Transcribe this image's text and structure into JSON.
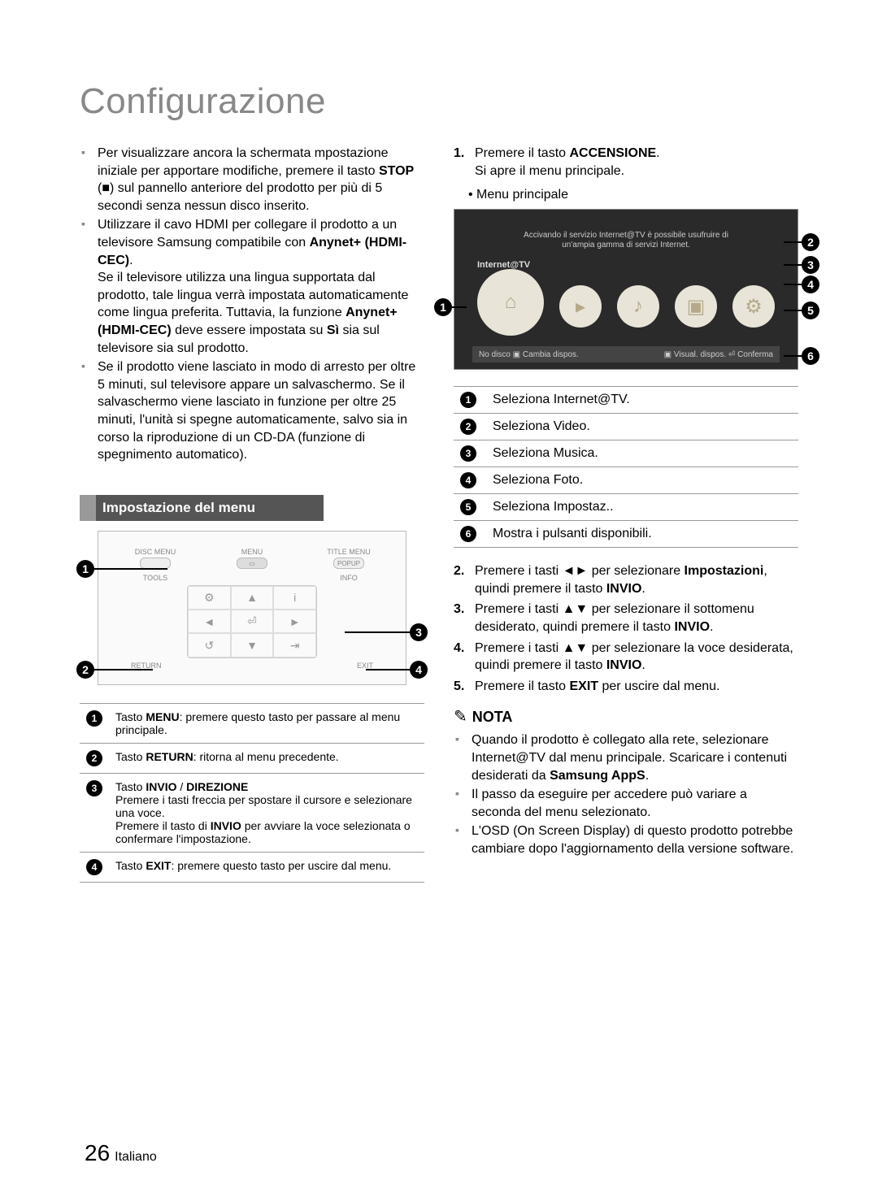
{
  "page": {
    "title": "Configurazione",
    "number": "26",
    "lang": "Italiano"
  },
  "left_bullets": [
    "Per visualizzare ancora la schermata mpostazione iniziale per apportare modifiche, premere il tasto <b>STOP</b> (■) sul pannello anteriore del prodotto per più di 5 secondi senza nessun disco inserito.",
    "Utilizzare il cavo HDMI per collegare il prodotto a un televisore Samsung compatibile con <b>Anynet+ (HDMI-CEC)</b>.<br>Se il televisore utilizza una lingua supportata dal prodotto, tale lingua verrà impostata automaticamente come lingua preferita. Tuttavia, la funzione <b>Anynet+ (HDMI-CEC)</b> deve essere impostata su <b>Sì</b> sia sul televisore sia sul prodotto.",
    "Se il prodotto viene lasciato in modo di arresto per oltre 5 minuti, sul televisore appare un salvaschermo. Se il salvaschermo viene lasciato in funzione per oltre 25 minuti, l'unità si spegne automaticamente, salvo sia in corso la riproduzione di un CD-DA (funzione di spegnimento automatico)."
  ],
  "section_band": "Impostazione del menu",
  "remote": {
    "top_labels": [
      "DISC MENU",
      "MENU",
      "TITLE MENU"
    ],
    "popup": "POPUP",
    "mid_labels": [
      "TOOLS",
      "INFO"
    ],
    "bottom_labels": [
      "RETURN",
      "EXIT"
    ]
  },
  "remote_table": [
    {
      "n": "1",
      "html": "Tasto <b>MENU</b>: premere questo tasto per passare al menu principale."
    },
    {
      "n": "2",
      "html": "Tasto <b>RETURN</b>: ritorna al menu precedente."
    },
    {
      "n": "3",
      "html": "Tasto <b>INVIO</b> / <b>DIREZIONE</b><br>Premere i tasti freccia per spostare il cursore e selezionare una voce.<br>Premere il tasto di <b>INVIO</b> per avviare la voce selezionata o confermare l'impostazione."
    },
    {
      "n": "4",
      "html": "Tasto <b>EXIT</b>: premere questo tasto per uscire dal menu."
    }
  ],
  "right": {
    "step1": "Premere il tasto <b>ACCENSIONE</b>.<br>Si apre il menu principale.",
    "menu_label": "• Menu principale",
    "tv_banner": "Accivando il servizio Internet@TV è possibile usufruire di un'ampia gamma di servizi Internet.",
    "tv_internet": "Internet@TV",
    "tv_bar_left": "No disco  ▣ Cambia dispos.",
    "tv_bar_right": "▣ Visual. dispos.   ⏎ Conferma",
    "desc": [
      {
        "n": "1",
        "t": "Seleziona Internet@TV."
      },
      {
        "n": "2",
        "t": "Seleziona Video."
      },
      {
        "n": "3",
        "t": "Seleziona Musica."
      },
      {
        "n": "4",
        "t": "Seleziona Foto."
      },
      {
        "n": "5",
        "t": "Seleziona Impostaz.."
      },
      {
        "n": "6",
        "t": "Mostra i pulsanti disponibili."
      }
    ],
    "steps_rest": [
      "Premere i tasti ◄► per selezionare <b>Impostazioni</b>, quindi premere il tasto <b>INVIO</b>.",
      "Premere i tasti ▲▼ per selezionare il sottomenu desiderato, quindi premere il tasto <b>INVIO</b>.",
      "Premere i tasti ▲▼ per selezionare la voce desiderata, quindi premere il tasto <b>INVIO</b>.",
      "Premere il tasto <b>EXIT</b> per uscire dal menu."
    ],
    "nota_label": "NOTA",
    "nota": [
      "Quando il prodotto è collegato alla rete, selezionare Internet@TV dal menu principale. Scaricare i contenuti desiderati da <b>Samsung AppS</b>.",
      "Il passo da eseguire per accedere può variare a seconda del menu selezionato.",
      "L'OSD (On Screen Display) di questo prodotto potrebbe cambiare  dopo l'aggiornamento della versione software."
    ]
  }
}
